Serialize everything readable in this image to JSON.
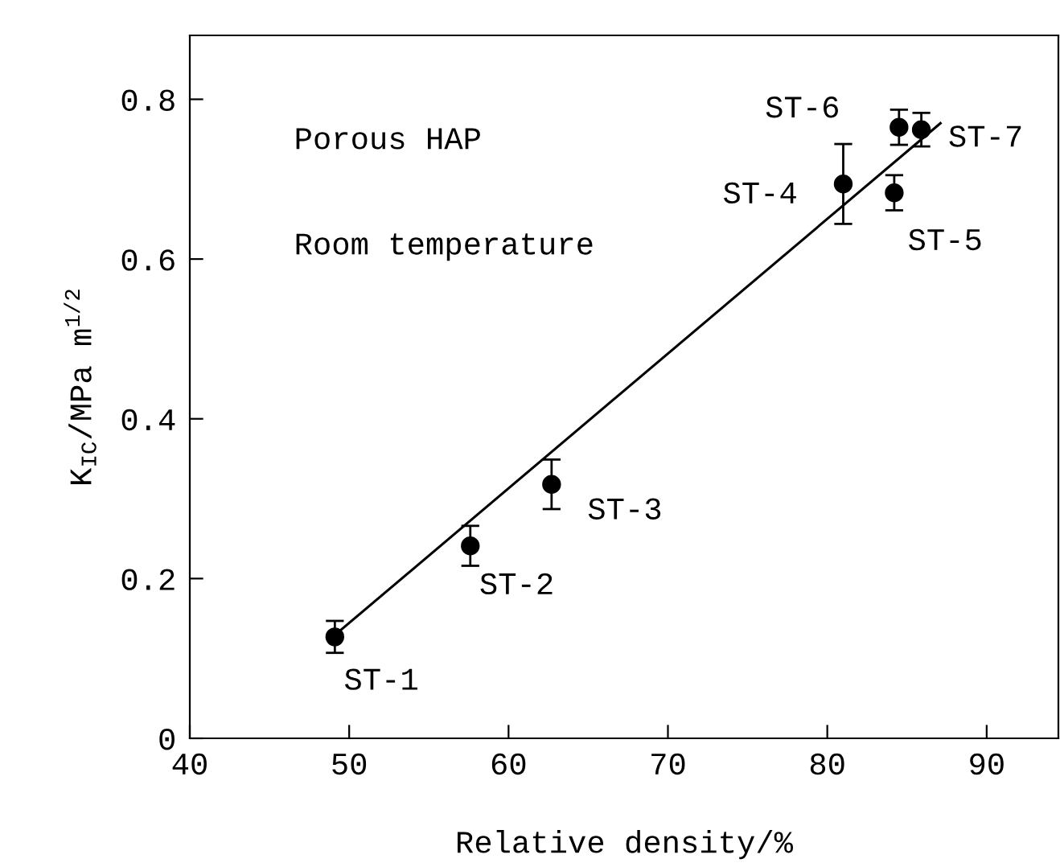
{
  "chart_data": {
    "type": "scatter",
    "xlabel": "Relative density/%",
    "ylabel": "K$_{IC}$/MPa m$^{1/2}$",
    "xlim": [
      40,
      94.5
    ],
    "ylim": [
      0,
      0.88
    ],
    "xticks": [
      40,
      50,
      60,
      70,
      80,
      90
    ],
    "yticks": [
      0,
      0.2,
      0.4,
      0.6,
      0.8
    ],
    "grid": false,
    "series": [
      {
        "color": "#000000",
        "marker": "circle",
        "x": [
          49.1,
          57.6,
          62.7,
          81.0,
          84.2,
          84.5,
          85.9
        ],
        "values": [
          0.127,
          0.241,
          0.318,
          0.694,
          0.683,
          0.765,
          0.762
        ],
        "errors": [
          0.02,
          0.025,
          0.031,
          0.05,
          0.022,
          0.022,
          0.021
        ]
      },
      {
        "type": "line",
        "color": "#000000",
        "line_style": "solid",
        "marker": "none",
        "x": [
          49.5,
          87.1
        ],
        "values": [
          0.136,
          0.77
        ]
      }
    ],
    "annotations": [
      "Porous HAP",
      "Room temperature",
      {
        "text": "ST-1",
        "x": 49.1,
        "y": 0.127
      },
      {
        "text": "ST-2",
        "x": 57.6,
        "y": 0.241
      },
      {
        "text": "ST-3",
        "x": 62.7,
        "y": 0.318
      },
      {
        "text": "ST-4",
        "x": 81.0,
        "y": 0.694
      },
      {
        "text": "ST-5",
        "x": 84.2,
        "y": 0.683
      },
      {
        "text": "ST-6",
        "x": 84.5,
        "y": 0.765
      },
      {
        "text": "ST-7",
        "x": 85.9,
        "y": 0.762
      }
    ]
  }
}
